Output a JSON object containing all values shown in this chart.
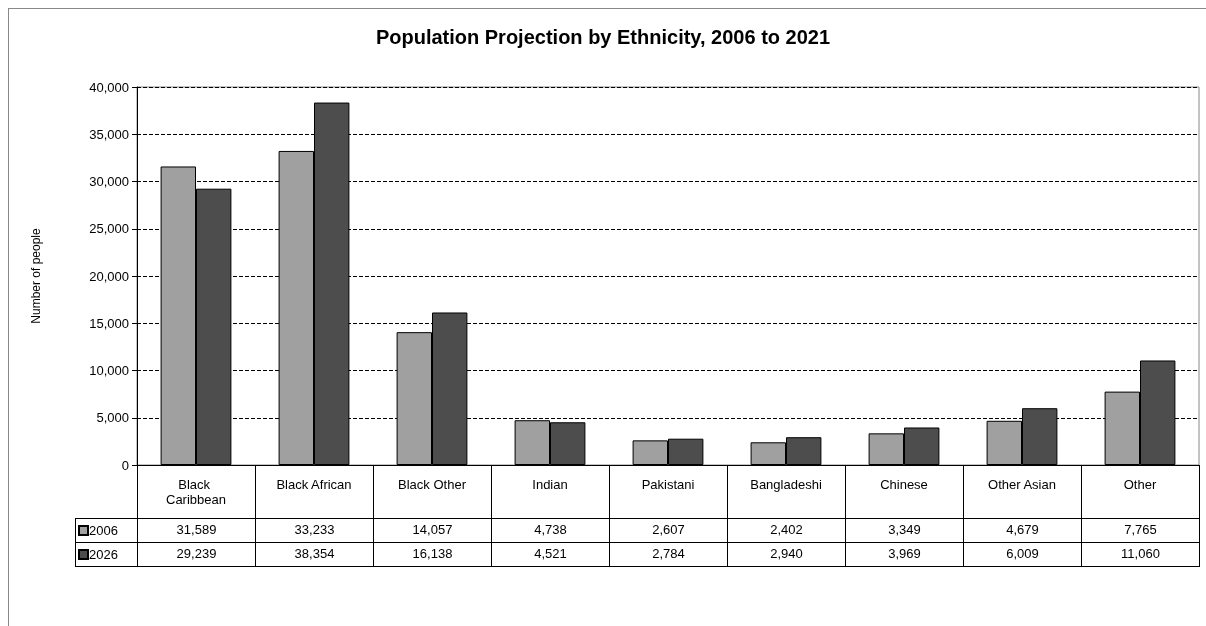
{
  "chart_data": {
    "type": "bar",
    "title": "Population Projection by Ethnicity, 2006 to 2021",
    "ylabel": "Number of people",
    "categories": [
      "Black Caribbean",
      "Black African",
      "Black Other",
      "Indian",
      "Pakistani",
      "Bangladeshi",
      "Chinese",
      "Other Asian",
      "Other"
    ],
    "series": [
      {
        "name": "2006",
        "color": "#a0a0a0",
        "values": [
          31589,
          33233,
          14057,
          4738,
          2607,
          2402,
          3349,
          4679,
          7765
        ],
        "value_labels": [
          "31,589",
          "33,233",
          "14,057",
          "4,738",
          "2,607",
          "2,402",
          "3,349",
          "4,679",
          "7,765"
        ]
      },
      {
        "name": "2026",
        "color": "#4d4d4d",
        "values": [
          29239,
          38354,
          16138,
          4521,
          2784,
          2940,
          3969,
          6009,
          11060
        ],
        "value_labels": [
          "29,239",
          "38,354",
          "16,138",
          "4,521",
          "2,784",
          "2,940",
          "3,969",
          "6,009",
          "11,060"
        ]
      }
    ],
    "ylim": [
      0,
      40000
    ],
    "yticks": [
      0,
      {
        "value": 5000,
        "label": "5,000"
      },
      {
        "value": 10000,
        "label": "10,000"
      },
      {
        "value": 15000,
        "label": "15,000"
      },
      {
        "value": 20000,
        "label": "20,000"
      },
      {
        "value": 25000,
        "label": "25,000"
      },
      {
        "value": 30000,
        "label": "30,000"
      },
      {
        "value": 35000,
        "label": "35,000"
      },
      {
        "value": 40000,
        "label": "40,000"
      }
    ],
    "grid": "y",
    "legend": "bottom left"
  }
}
